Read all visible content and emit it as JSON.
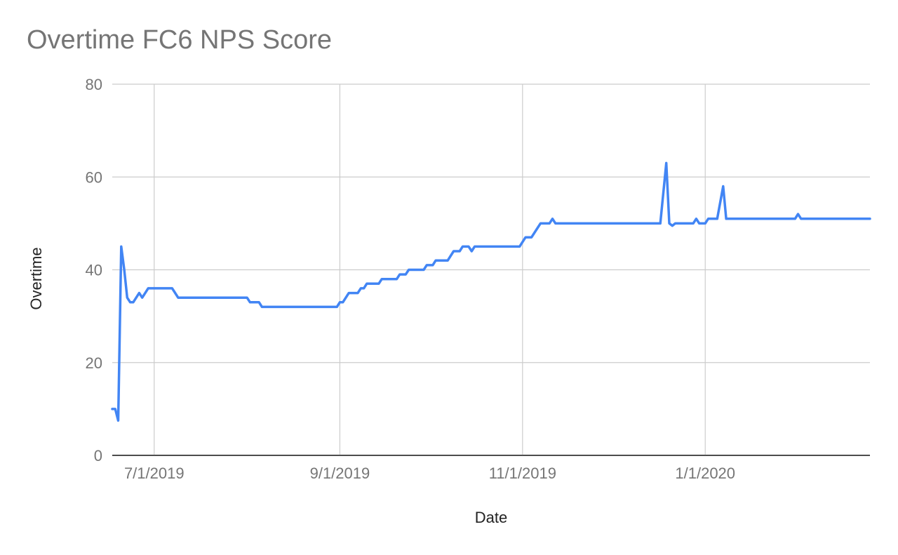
{
  "chart_data": {
    "type": "line",
    "title": "Overtime FC6 NPS Score",
    "xlabel": "Date",
    "ylabel": "Overtime",
    "ylim": [
      0,
      80
    ],
    "yticks": [
      0,
      20,
      40,
      60,
      80
    ],
    "xlim": [
      "2019-06-17",
      "2020-02-25"
    ],
    "xticks": [
      {
        "label": "7/1/2019",
        "date": "2019-07-01"
      },
      {
        "label": "9/1/2019",
        "date": "2019-09-01"
      },
      {
        "label": "11/1/2019",
        "date": "2019-11-01"
      },
      {
        "label": "1/1/2020",
        "date": "2020-01-01"
      }
    ],
    "grid": true,
    "series": [
      {
        "name": "",
        "color": "#4285f4",
        "points": [
          [
            "2019-06-17",
            10
          ],
          [
            "2019-06-18",
            10
          ],
          [
            "2019-06-19",
            7.5
          ],
          [
            "2019-06-20",
            45
          ],
          [
            "2019-06-21",
            40
          ],
          [
            "2019-06-22",
            34
          ],
          [
            "2019-06-23",
            33
          ],
          [
            "2019-06-24",
            33
          ],
          [
            "2019-06-26",
            35
          ],
          [
            "2019-06-27",
            34
          ],
          [
            "2019-06-28",
            35
          ],
          [
            "2019-06-29",
            36
          ],
          [
            "2019-07-07",
            36
          ],
          [
            "2019-07-09",
            34
          ],
          [
            "2019-08-01",
            34
          ],
          [
            "2019-08-02",
            33
          ],
          [
            "2019-08-05",
            33
          ],
          [
            "2019-08-06",
            32
          ],
          [
            "2019-08-31",
            32
          ],
          [
            "2019-09-01",
            33
          ],
          [
            "2019-09-02",
            33
          ],
          [
            "2019-09-04",
            35
          ],
          [
            "2019-09-07",
            35
          ],
          [
            "2019-09-08",
            36
          ],
          [
            "2019-09-09",
            36
          ],
          [
            "2019-09-10",
            37
          ],
          [
            "2019-09-14",
            37
          ],
          [
            "2019-09-15",
            38
          ],
          [
            "2019-09-20",
            38
          ],
          [
            "2019-09-21",
            39
          ],
          [
            "2019-09-23",
            39
          ],
          [
            "2019-09-24",
            40
          ],
          [
            "2019-09-29",
            40
          ],
          [
            "2019-09-30",
            41
          ],
          [
            "2019-10-02",
            41
          ],
          [
            "2019-10-03",
            42
          ],
          [
            "2019-10-07",
            42
          ],
          [
            "2019-10-09",
            44
          ],
          [
            "2019-10-11",
            44
          ],
          [
            "2019-10-12",
            45
          ],
          [
            "2019-10-14",
            45
          ],
          [
            "2019-10-15",
            44
          ],
          [
            "2019-10-16",
            45
          ],
          [
            "2019-10-31",
            45
          ],
          [
            "2019-11-02",
            47
          ],
          [
            "2019-11-04",
            47
          ],
          [
            "2019-11-07",
            50
          ],
          [
            "2019-11-10",
            50
          ],
          [
            "2019-11-11",
            51
          ],
          [
            "2019-11-12",
            50
          ],
          [
            "2019-12-17",
            50
          ],
          [
            "2019-12-19",
            63
          ],
          [
            "2019-12-20",
            50
          ],
          [
            "2019-12-21",
            49.5
          ],
          [
            "2019-12-22",
            50
          ],
          [
            "2019-12-28",
            50
          ],
          [
            "2019-12-29",
            51
          ],
          [
            "2019-12-30",
            50
          ],
          [
            "2020-01-01",
            50
          ],
          [
            "2020-01-02",
            51
          ],
          [
            "2020-01-05",
            51
          ],
          [
            "2020-01-07",
            58
          ],
          [
            "2020-01-08",
            51
          ],
          [
            "2020-01-31",
            51
          ],
          [
            "2020-02-01",
            52
          ],
          [
            "2020-02-02",
            51
          ],
          [
            "2020-02-25",
            51
          ]
        ]
      }
    ]
  }
}
